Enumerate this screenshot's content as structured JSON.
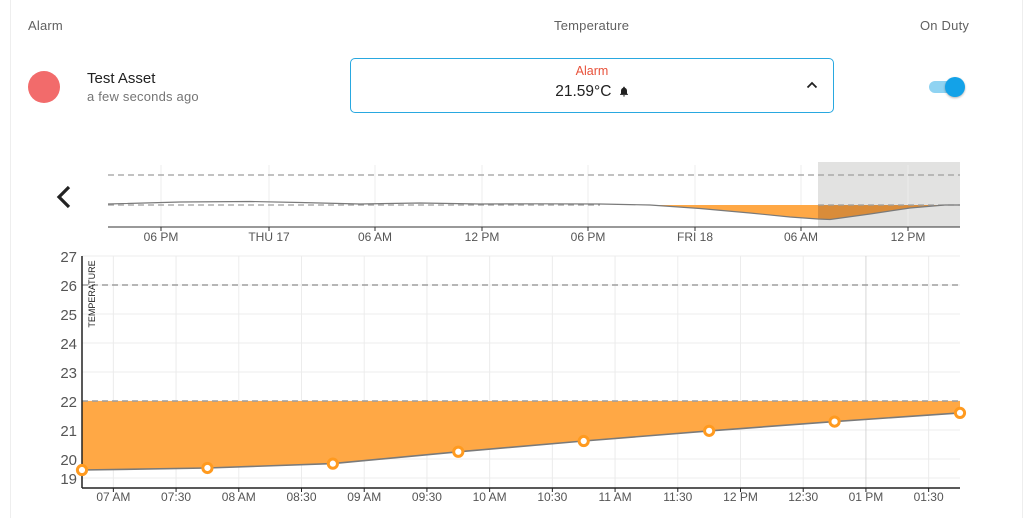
{
  "header": {
    "alarm_label": "Alarm",
    "temperature_label": "Temperature",
    "on_duty_label": "On Duty"
  },
  "asset": {
    "name": "Test Asset",
    "updated": "a few seconds ago",
    "status_color": "#f26b6b"
  },
  "temperature": {
    "status": "Alarm",
    "value": "21.59°C",
    "status_color": "#e8513a",
    "expanded": true
  },
  "on_duty": {
    "enabled": true
  },
  "icons": {
    "bell": "bell-icon",
    "collapse": "chevron-up-icon",
    "back": "chevron-left-icon"
  },
  "colors": {
    "fill": "#ffa845",
    "line": "#7a7a7a",
    "point": "#ff9a1f",
    "accent": "#29a8e0"
  },
  "overview_chart": {
    "x_ticks": [
      "06 PM",
      "THU 17",
      "06 AM",
      "12 PM",
      "06 PM",
      "FRI 18",
      "06 AM",
      "12 PM"
    ]
  },
  "chart_data": {
    "type": "area",
    "ylabel": "TEMPERATURE",
    "ylim": [
      19,
      27
    ],
    "y_ticks": [
      "19",
      "20",
      "21",
      "22",
      "23",
      "24",
      "25",
      "26",
      "27"
    ],
    "x_ticks": [
      "07 AM",
      "07:30",
      "08 AM",
      "08:30",
      "09 AM",
      "09:30",
      "10 AM",
      "10:30",
      "11 AM",
      "11:30",
      "12 PM",
      "12:30",
      "01 PM",
      "01:30"
    ],
    "thresholds": [
      22,
      26
    ],
    "series": [
      {
        "x_hours": [
          0,
          0.5,
          1,
          1.5,
          2,
          2.5,
          3,
          3.5
        ],
        "x_labels": [
          "07:00",
          "07:30",
          "08:00",
          "08:30",
          "09:00",
          "09:30",
          "10:00",
          "10:30"
        ],
        "values": [
          19.62,
          19.69,
          19.84,
          20.25,
          20.62,
          20.97,
          21.29,
          21.59
        ]
      }
    ],
    "x_range_hours": [
      0,
      3.5
    ]
  }
}
